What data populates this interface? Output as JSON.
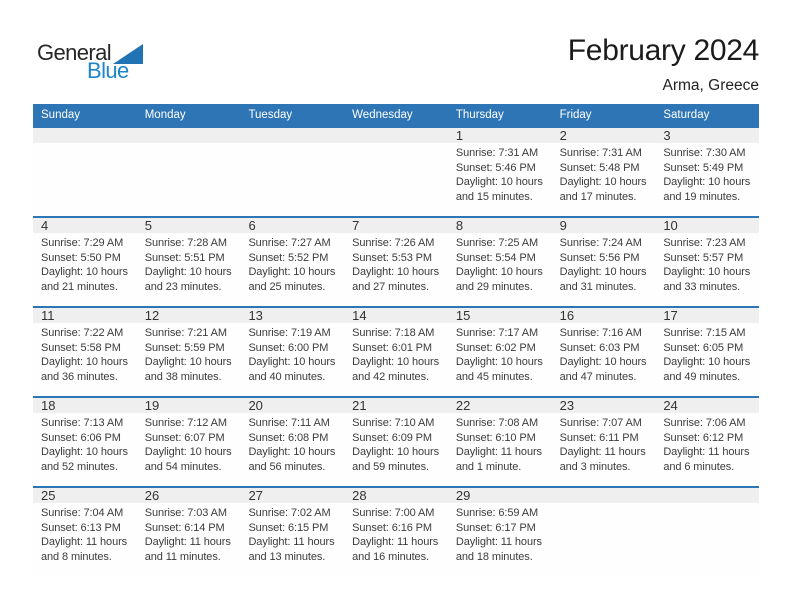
{
  "logo": {
    "text_top": "General",
    "text_bottom": "Blue"
  },
  "title": "February 2024",
  "subtitle": "Arma, Greece",
  "weekdays": [
    "Sunday",
    "Monday",
    "Tuesday",
    "Wednesday",
    "Thursday",
    "Friday",
    "Saturday"
  ],
  "colors": {
    "header_bg": "#2E75B6",
    "row_border": "#2E75B6",
    "band_bg": "#EFEFEF",
    "logo_blue": "#1D86C8",
    "triangle_blue": "#2173B4"
  },
  "weeks": [
    [
      null,
      null,
      null,
      null,
      {
        "day": "1",
        "sunrise": "Sunrise: 7:31 AM",
        "sunset": "Sunset: 5:46 PM",
        "daylight": "Daylight: 10 hours and 15 minutes."
      },
      {
        "day": "2",
        "sunrise": "Sunrise: 7:31 AM",
        "sunset": "Sunset: 5:48 PM",
        "daylight": "Daylight: 10 hours and 17 minutes."
      },
      {
        "day": "3",
        "sunrise": "Sunrise: 7:30 AM",
        "sunset": "Sunset: 5:49 PM",
        "daylight": "Daylight: 10 hours and 19 minutes."
      }
    ],
    [
      {
        "day": "4",
        "sunrise": "Sunrise: 7:29 AM",
        "sunset": "Sunset: 5:50 PM",
        "daylight": "Daylight: 10 hours and 21 minutes."
      },
      {
        "day": "5",
        "sunrise": "Sunrise: 7:28 AM",
        "sunset": "Sunset: 5:51 PM",
        "daylight": "Daylight: 10 hours and 23 minutes."
      },
      {
        "day": "6",
        "sunrise": "Sunrise: 7:27 AM",
        "sunset": "Sunset: 5:52 PM",
        "daylight": "Daylight: 10 hours and 25 minutes."
      },
      {
        "day": "7",
        "sunrise": "Sunrise: 7:26 AM",
        "sunset": "Sunset: 5:53 PM",
        "daylight": "Daylight: 10 hours and 27 minutes."
      },
      {
        "day": "8",
        "sunrise": "Sunrise: 7:25 AM",
        "sunset": "Sunset: 5:54 PM",
        "daylight": "Daylight: 10 hours and 29 minutes."
      },
      {
        "day": "9",
        "sunrise": "Sunrise: 7:24 AM",
        "sunset": "Sunset: 5:56 PM",
        "daylight": "Daylight: 10 hours and 31 minutes."
      },
      {
        "day": "10",
        "sunrise": "Sunrise: 7:23 AM",
        "sunset": "Sunset: 5:57 PM",
        "daylight": "Daylight: 10 hours and 33 minutes."
      }
    ],
    [
      {
        "day": "11",
        "sunrise": "Sunrise: 7:22 AM",
        "sunset": "Sunset: 5:58 PM",
        "daylight": "Daylight: 10 hours and 36 minutes."
      },
      {
        "day": "12",
        "sunrise": "Sunrise: 7:21 AM",
        "sunset": "Sunset: 5:59 PM",
        "daylight": "Daylight: 10 hours and 38 minutes."
      },
      {
        "day": "13",
        "sunrise": "Sunrise: 7:19 AM",
        "sunset": "Sunset: 6:00 PM",
        "daylight": "Daylight: 10 hours and 40 minutes."
      },
      {
        "day": "14",
        "sunrise": "Sunrise: 7:18 AM",
        "sunset": "Sunset: 6:01 PM",
        "daylight": "Daylight: 10 hours and 42 minutes."
      },
      {
        "day": "15",
        "sunrise": "Sunrise: 7:17 AM",
        "sunset": "Sunset: 6:02 PM",
        "daylight": "Daylight: 10 hours and 45 minutes."
      },
      {
        "day": "16",
        "sunrise": "Sunrise: 7:16 AM",
        "sunset": "Sunset: 6:03 PM",
        "daylight": "Daylight: 10 hours and 47 minutes."
      },
      {
        "day": "17",
        "sunrise": "Sunrise: 7:15 AM",
        "sunset": "Sunset: 6:05 PM",
        "daylight": "Daylight: 10 hours and 49 minutes."
      }
    ],
    [
      {
        "day": "18",
        "sunrise": "Sunrise: 7:13 AM",
        "sunset": "Sunset: 6:06 PM",
        "daylight": "Daylight: 10 hours and 52 minutes."
      },
      {
        "day": "19",
        "sunrise": "Sunrise: 7:12 AM",
        "sunset": "Sunset: 6:07 PM",
        "daylight": "Daylight: 10 hours and 54 minutes."
      },
      {
        "day": "20",
        "sunrise": "Sunrise: 7:11 AM",
        "sunset": "Sunset: 6:08 PM",
        "daylight": "Daylight: 10 hours and 56 minutes."
      },
      {
        "day": "21",
        "sunrise": "Sunrise: 7:10 AM",
        "sunset": "Sunset: 6:09 PM",
        "daylight": "Daylight: 10 hours and 59 minutes."
      },
      {
        "day": "22",
        "sunrise": "Sunrise: 7:08 AM",
        "sunset": "Sunset: 6:10 PM",
        "daylight": "Daylight: 11 hours and 1 minute."
      },
      {
        "day": "23",
        "sunrise": "Sunrise: 7:07 AM",
        "sunset": "Sunset: 6:11 PM",
        "daylight": "Daylight: 11 hours and 3 minutes."
      },
      {
        "day": "24",
        "sunrise": "Sunrise: 7:06 AM",
        "sunset": "Sunset: 6:12 PM",
        "daylight": "Daylight: 11 hours and 6 minutes."
      }
    ],
    [
      {
        "day": "25",
        "sunrise": "Sunrise: 7:04 AM",
        "sunset": "Sunset: 6:13 PM",
        "daylight": "Daylight: 11 hours and 8 minutes."
      },
      {
        "day": "26",
        "sunrise": "Sunrise: 7:03 AM",
        "sunset": "Sunset: 6:14 PM",
        "daylight": "Daylight: 11 hours and 11 minutes."
      },
      {
        "day": "27",
        "sunrise": "Sunrise: 7:02 AM",
        "sunset": "Sunset: 6:15 PM",
        "daylight": "Daylight: 11 hours and 13 minutes."
      },
      {
        "day": "28",
        "sunrise": "Sunrise: 7:00 AM",
        "sunset": "Sunset: 6:16 PM",
        "daylight": "Daylight: 11 hours and 16 minutes."
      },
      {
        "day": "29",
        "sunrise": "Sunrise: 6:59 AM",
        "sunset": "Sunset: 6:17 PM",
        "daylight": "Daylight: 11 hours and 18 minutes."
      },
      null,
      null
    ]
  ]
}
